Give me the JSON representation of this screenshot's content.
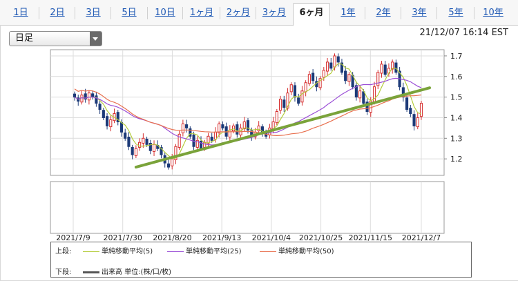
{
  "tabs": [
    {
      "label": "1日"
    },
    {
      "label": "2日"
    },
    {
      "label": "3日"
    },
    {
      "label": "5日"
    },
    {
      "label": "10日"
    },
    {
      "label": "1ヶ月"
    },
    {
      "label": "2ヶ月"
    },
    {
      "label": "3ヶ月"
    },
    {
      "label": "6ヶ月",
      "active": true
    },
    {
      "label": "1年"
    },
    {
      "label": "2年"
    },
    {
      "label": "3年"
    },
    {
      "label": "5年"
    },
    {
      "label": "10年"
    }
  ],
  "selector": {
    "value": "日足"
  },
  "timestamp": "21/12/07 16:14 EST",
  "legend": {
    "upper_label": "上段:",
    "lower_label": "下段:",
    "lower_item": "出来高 単位:(株/口/枚)",
    "items": [
      {
        "label": "単純移動平均(5)",
        "color": "#b5cc3c"
      },
      {
        "label": "単純移動平均(25)",
        "color": "#9b4fd6"
      },
      {
        "label": "単純移動平均(50)",
        "color": "#e8704f"
      }
    ]
  },
  "chart_data": {
    "type": "candlestick",
    "x_tick_labels": [
      "2021/7/9",
      "2021/7/30",
      "2021/8/20",
      "2021/9/13",
      "2021/10/4",
      "2021/10/25",
      "2021/11/15",
      "2021/12/7"
    ],
    "y_tick_labels": [
      "1.7",
      "1.6",
      "1.5",
      "1.4",
      "1.3",
      "1.2"
    ],
    "ylim": [
      1.12,
      1.73
    ],
    "grid": true,
    "colors": {
      "up": "#d62d2d",
      "down": "#1c3a78",
      "trendline": "#7aa33a"
    },
    "close": [
      1.5,
      1.48,
      1.51,
      1.49,
      1.52,
      1.5,
      1.47,
      1.44,
      1.4,
      1.36,
      1.39,
      1.42,
      1.38,
      1.33,
      1.3,
      1.26,
      1.22,
      1.25,
      1.28,
      1.3,
      1.27,
      1.24,
      1.27,
      1.25,
      1.22,
      1.18,
      1.16,
      1.2,
      1.26,
      1.32,
      1.37,
      1.35,
      1.31,
      1.26,
      1.29,
      1.25,
      1.28,
      1.31,
      1.29,
      1.33,
      1.37,
      1.35,
      1.31,
      1.34,
      1.36,
      1.32,
      1.35,
      1.38,
      1.34,
      1.31,
      1.33,
      1.36,
      1.33,
      1.31,
      1.35,
      1.38,
      1.43,
      1.49,
      1.45,
      1.52,
      1.56,
      1.5,
      1.47,
      1.53,
      1.57,
      1.61,
      1.58,
      1.55,
      1.59,
      1.63,
      1.67,
      1.64,
      1.7,
      1.67,
      1.62,
      1.58,
      1.61,
      1.55,
      1.5,
      1.53,
      1.47,
      1.43,
      1.48,
      1.55,
      1.62,
      1.66,
      1.61,
      1.64,
      1.67,
      1.62,
      1.55,
      1.5,
      1.44,
      1.42,
      1.36,
      1.4,
      1.47
    ],
    "volume": []
  }
}
